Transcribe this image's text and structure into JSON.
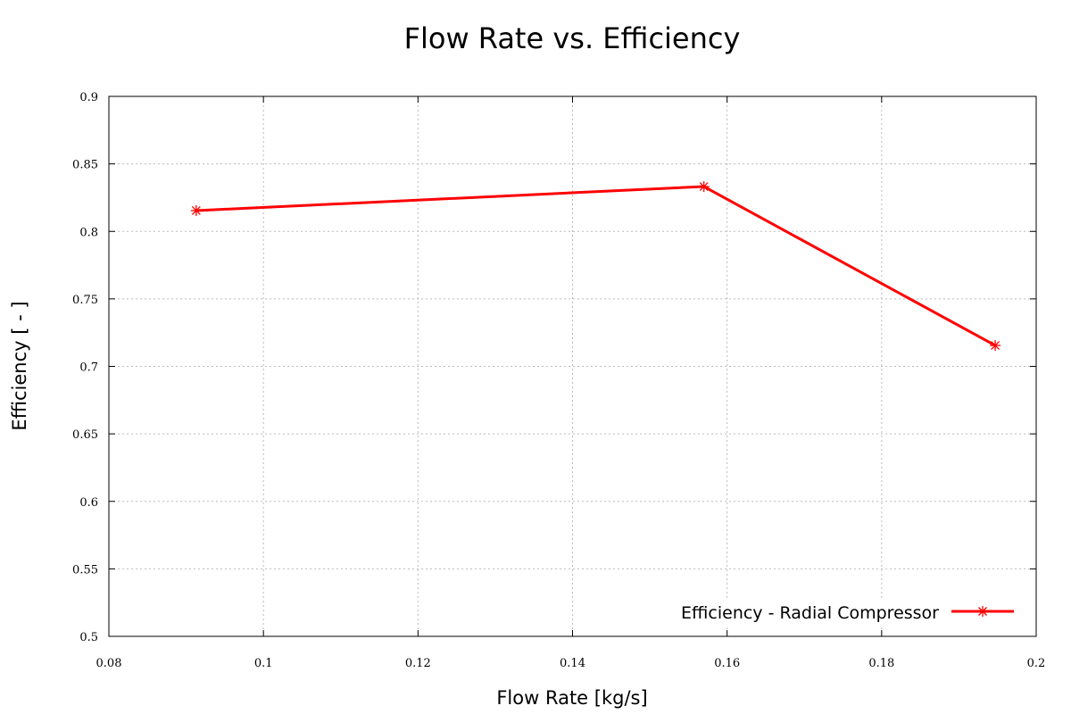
{
  "chart_data": {
    "type": "line",
    "title": "Flow Rate  vs. Efficiency",
    "xlabel": "Flow Rate [kg/s]",
    "ylabel": "Efficiency [ - ]",
    "xlim": [
      0.08,
      0.2
    ],
    "ylim": [
      0.5,
      0.9
    ],
    "xticks": [
      "0.08",
      "0.1",
      "0.12",
      "0.14",
      "0.16",
      "0.18",
      "0.2"
    ],
    "yticks": [
      "0.5",
      "0.55",
      "0.6",
      "0.65",
      "0.7",
      "0.75",
      "0.8",
      "0.85",
      "0.9"
    ],
    "grid": true,
    "legend_position": "bottom-right",
    "series": [
      {
        "name": "Efficiency - Radial Compressor",
        "color": "#ff0000",
        "marker": "asterisk",
        "x": [
          0.0913,
          0.157,
          0.1947
        ],
        "y": [
          0.8154,
          0.8332,
          0.7155
        ]
      }
    ]
  }
}
